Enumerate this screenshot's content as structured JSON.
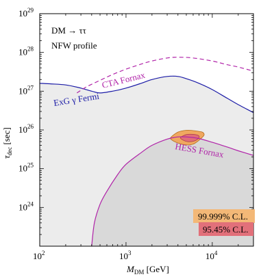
{
  "chart_data": {
    "type": "line",
    "xlabel": "M_DM [GeV]",
    "ylabel": "τ_dec [sec]",
    "xscale": "log",
    "yscale": "log",
    "xlim": [
      100,
      30000
    ],
    "ylim": [
      1e+23,
      1e+29
    ],
    "x_ticks": [
      {
        "value": 100,
        "base": "10",
        "exp": "2"
      },
      {
        "value": 1000,
        "base": "10",
        "exp": "3"
      },
      {
        "value": 10000,
        "base": "10",
        "exp": "4"
      }
    ],
    "y_ticks": [
      {
        "value": 1e+24,
        "base": "10",
        "exp": "24"
      },
      {
        "value": 1e+25,
        "base": "10",
        "exp": "25"
      },
      {
        "value": 1e+26,
        "base": "10",
        "exp": "26"
      },
      {
        "value": 1e+27,
        "base": "10",
        "exp": "27"
      },
      {
        "value": 1e+28,
        "base": "10",
        "exp": "28"
      },
      {
        "value": 1e+29,
        "base": "10",
        "exp": "29"
      }
    ],
    "annotations": [
      "DM → ττ",
      "NFW profile"
    ],
    "series": [
      {
        "name": "ExG γ Fermi",
        "color": "#1a1aa6",
        "style": "solid",
        "fill": "#ececec",
        "x": [
          100,
          130,
          200,
          300,
          400,
          500,
          700,
          1000,
          1500,
          2000,
          3000,
          4000,
          5000,
          7000,
          10000,
          15000,
          20000,
          30000
        ],
        "y": [
          1.6e+27,
          1.55e+27,
          1.45e+27,
          1.2e+27,
          1e+27,
          9e+26,
          1e+27,
          1.2e+27,
          1.6e+27,
          2e+27,
          2.4e+27,
          2.4e+27,
          2.1e+27,
          1.6e+27,
          1.1e+27,
          6.5e+26,
          4.5e+26,
          2.8e+26
        ]
      },
      {
        "name": "CTA Fornax",
        "color": "#b022a8",
        "style": "dashed",
        "x": [
          270,
          350,
          500,
          700,
          1000,
          1500,
          2000,
          3000,
          4000,
          6000,
          10000,
          15000,
          20000,
          30000
        ],
        "y": [
          9e+26,
          1.3e+27,
          1.9e+27,
          2.7e+27,
          3.7e+27,
          5e+27,
          6e+27,
          7.2e+27,
          7.5e+27,
          7.2e+27,
          6e+27,
          4.8e+27,
          4.2e+27,
          3.3e+27
        ]
      },
      {
        "name": "HESS Fornax",
        "color": "#b022a8",
        "style": "solid",
        "fill": "#d9d9d9",
        "x": [
          400,
          430,
          500,
          600,
          800,
          1000,
          1500,
          2000,
          3000,
          4000,
          5000,
          7000,
          10000,
          15000,
          20000,
          30000
        ],
        "y": [
          1e+23,
          4e+23,
          1.2e+24,
          2.6e+24,
          7e+24,
          1.3e+25,
          2.6e+25,
          4e+25,
          5.8e+25,
          6.6e+25,
          6.6e+25,
          6e+25,
          4.8e+25,
          3.6e+25,
          2.9e+25,
          2.2e+25
        ]
      }
    ],
    "regions": [
      {
        "name": "99.999% C.L.",
        "color": "#f0a860",
        "edge": "#b36b1a",
        "x": [
          3300,
          4000,
          5000,
          6000,
          7000,
          7800,
          8000,
          7000,
          6000,
          5000,
          4000,
          3400
        ],
        "y": [
          6.4e+25,
          8.8e+25,
          9.8e+25,
          9.6e+25,
          9.2e+25,
          8.6e+25,
          7.2e+25,
          5.4e+25,
          4.3e+25,
          4.1e+25,
          4.6e+25,
          5.5e+25
        ]
      },
      {
        "name": "95.45% C.L.",
        "color": "#e06e78",
        "edge": "#a93b46",
        "x": [
          4300,
          5000,
          6000,
          6900,
          7000,
          6200,
          5200,
          4500
        ],
        "y": [
          6.4e+25,
          7.6e+25,
          7.7e+25,
          7.2e+25,
          6.2e+25,
          5.2e+25,
          5e+25,
          5.6e+25
        ]
      }
    ],
    "legend": [
      {
        "label": "99.999% C.L.",
        "color": "#f3b877"
      },
      {
        "label": "95.45% C.L.",
        "color": "#e2707a"
      }
    ],
    "legend_position": "bottom-right"
  }
}
